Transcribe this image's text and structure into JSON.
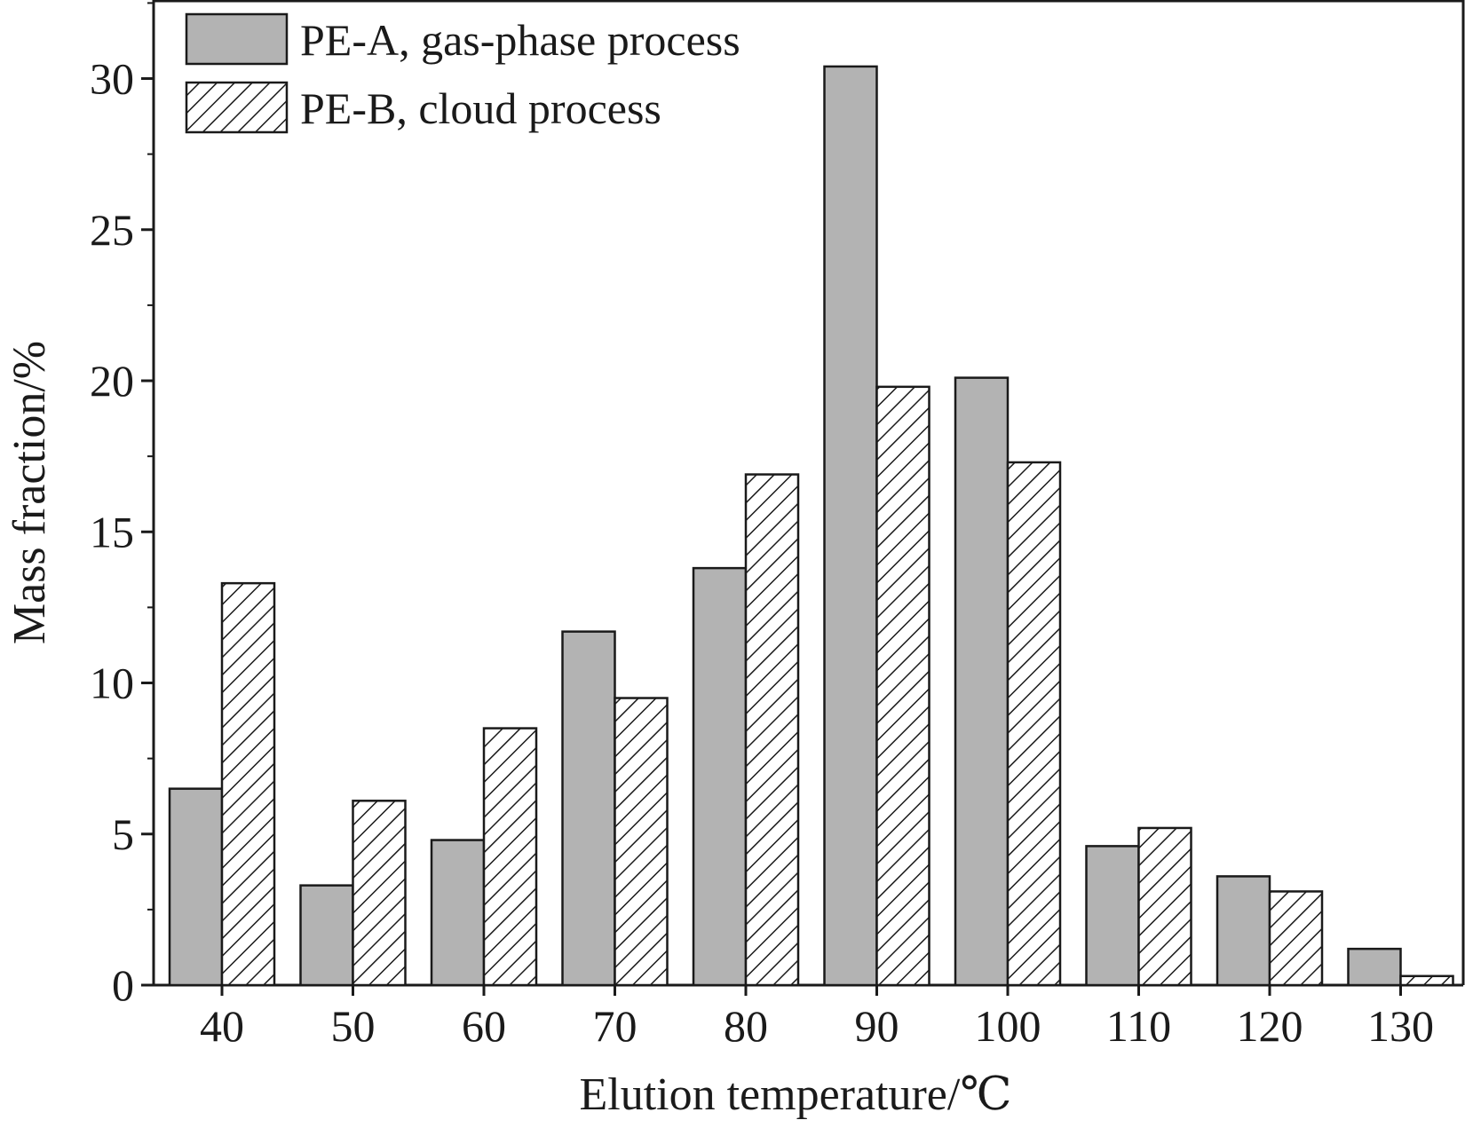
{
  "chart_data": {
    "type": "bar",
    "xlabel": "Elution temperature/℃",
    "ylabel": "Mass fraction/%",
    "categories": [
      "40",
      "50",
      "60",
      "70",
      "80",
      "90",
      "100",
      "110",
      "120",
      "130"
    ],
    "series": [
      {
        "name": "PE-A, gas-phase process",
        "values": [
          6.5,
          3.3,
          4.8,
          11.7,
          13.8,
          30.4,
          20.1,
          4.6,
          3.6,
          1.2
        ],
        "fill": "#b3b3b3",
        "pattern": "solid"
      },
      {
        "name": "PE-B, cloud process",
        "values": [
          13.3,
          6.1,
          8.5,
          9.5,
          16.9,
          19.8,
          17.3,
          5.2,
          3.1,
          0.3
        ],
        "fill": "#ffffff",
        "pattern": "diagonal-hatch"
      }
    ],
    "yticks": [
      0,
      5,
      10,
      15,
      20,
      25,
      30
    ],
    "ylim": [
      0,
      32.6
    ],
    "grid": false,
    "legend_position": "top-left",
    "colors": {
      "axis": "#1a1a1a",
      "bar_outline": "#1a1a1a",
      "hatch": "#1a1a1a"
    }
  }
}
